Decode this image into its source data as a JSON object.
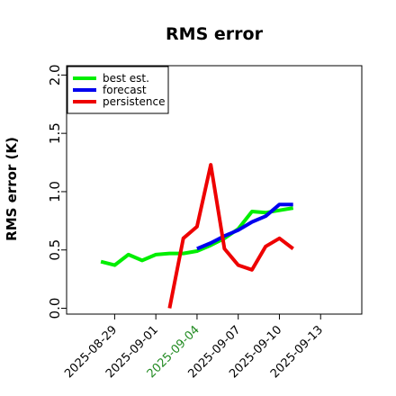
{
  "chart_data": {
    "type": "line",
    "title": "RMS error",
    "ylabel": "RMS error (K)",
    "xlabel": "",
    "ylim": [
      -0.05,
      2.08
    ],
    "yticks": [
      0.0,
      0.5,
      1.0,
      1.5,
      2.0
    ],
    "ytick_labels": [
      "0.0",
      "0.5",
      "1.0",
      "1.5",
      "2.0"
    ],
    "x_range": [
      "2025-08-25T12:00",
      "2025-09-16T00:00"
    ],
    "xticks": [
      {
        "date": "2025-08-29",
        "label": "2025-08-29",
        "color": "#000000"
      },
      {
        "date": "2025-09-01",
        "label": "2025-09-01",
        "color": "#000000"
      },
      {
        "date": "2025-09-04",
        "label": "2025-09-04",
        "color": "#228b22"
      },
      {
        "date": "2025-09-07",
        "label": "2025-09-07",
        "color": "#000000"
      },
      {
        "date": "2025-09-10",
        "label": "2025-09-10",
        "color": "#000000"
      },
      {
        "date": "2025-09-13",
        "label": "2025-09-13",
        "color": "#000000"
      }
    ],
    "grid": false,
    "legend": "top-left",
    "series": [
      {
        "name": "best est.",
        "color": "#00ee00",
        "points": [
          {
            "x": "2025-08-28",
            "y": 0.4
          },
          {
            "x": "2025-08-29",
            "y": 0.37
          },
          {
            "x": "2025-08-30",
            "y": 0.46
          },
          {
            "x": "2025-08-31",
            "y": 0.41
          },
          {
            "x": "2025-09-01",
            "y": 0.46
          },
          {
            "x": "2025-09-02",
            "y": 0.47
          },
          {
            "x": "2025-09-03",
            "y": 0.47
          },
          {
            "x": "2025-09-04",
            "y": 0.49
          },
          {
            "x": "2025-09-05",
            "y": 0.54
          },
          {
            "x": "2025-09-06",
            "y": 0.6
          },
          {
            "x": "2025-09-07",
            "y": 0.68
          },
          {
            "x": "2025-09-08",
            "y": 0.83
          },
          {
            "x": "2025-09-09",
            "y": 0.82
          },
          {
            "x": "2025-09-10",
            "y": 0.84
          },
          {
            "x": "2025-09-11",
            "y": 0.86
          }
        ]
      },
      {
        "name": "forecast",
        "color": "#0000ee",
        "points": [
          {
            "x": "2025-09-04",
            "y": 0.51
          },
          {
            "x": "2025-09-05",
            "y": 0.56
          },
          {
            "x": "2025-09-06",
            "y": 0.62
          },
          {
            "x": "2025-09-07",
            "y": 0.67
          },
          {
            "x": "2025-09-08",
            "y": 0.74
          },
          {
            "x": "2025-09-09",
            "y": 0.79
          },
          {
            "x": "2025-09-10",
            "y": 0.89
          },
          {
            "x": "2025-09-11",
            "y": 0.89
          }
        ]
      },
      {
        "name": "persistence",
        "color": "#ee0000",
        "points": [
          {
            "x": "2025-09-02",
            "y": 0.0
          },
          {
            "x": "2025-09-03",
            "y": 0.6
          },
          {
            "x": "2025-09-04",
            "y": 0.7
          },
          {
            "x": "2025-09-05",
            "y": 1.23
          },
          {
            "x": "2025-09-06",
            "y": 0.51
          },
          {
            "x": "2025-09-07",
            "y": 0.37
          },
          {
            "x": "2025-09-08",
            "y": 0.33
          },
          {
            "x": "2025-09-09",
            "y": 0.53
          },
          {
            "x": "2025-09-10",
            "y": 0.6
          },
          {
            "x": "2025-09-11",
            "y": 0.51
          }
        ]
      }
    ]
  }
}
